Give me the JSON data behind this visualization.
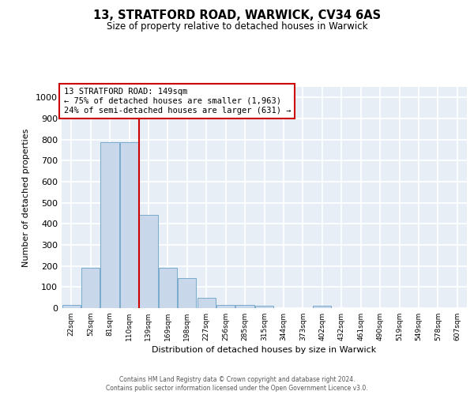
{
  "title_line1": "13, STRATFORD ROAD, WARWICK, CV34 6AS",
  "title_line2": "Size of property relative to detached houses in Warwick",
  "xlabel": "Distribution of detached houses by size in Warwick",
  "ylabel": "Number of detached properties",
  "annotation_title": "13 STRATFORD ROAD: 149sqm",
  "annotation_line2": "← 75% of detached houses are smaller (1,963)",
  "annotation_line3": "24% of semi-detached houses are larger (631) →",
  "bar_labels": [
    "22sqm",
    "52sqm",
    "81sqm",
    "110sqm",
    "139sqm",
    "169sqm",
    "198sqm",
    "227sqm",
    "256sqm",
    "285sqm",
    "315sqm",
    "344sqm",
    "373sqm",
    "402sqm",
    "432sqm",
    "461sqm",
    "490sqm",
    "519sqm",
    "549sqm",
    "578sqm",
    "607sqm"
  ],
  "bar_values": [
    15,
    193,
    787,
    787,
    443,
    193,
    143,
    50,
    15,
    15,
    10,
    0,
    0,
    10,
    0,
    0,
    0,
    0,
    0,
    0,
    0
  ],
  "bar_color": "#c8d8ea",
  "bar_edge_color": "#7aaBcc",
  "ylim": [
    0,
    1050
  ],
  "yticks": [
    0,
    100,
    200,
    300,
    400,
    500,
    600,
    700,
    800,
    900,
    1000
  ],
  "background_color": "#e8eef6",
  "grid_color": "#ffffff",
  "annotation_box_color": "#ffffff",
  "annotation_box_edge": "#cc0000",
  "red_line_color": "#cc0000",
  "fig_background": "#ffffff",
  "footer_line1": "Contains HM Land Registry data © Crown copyright and database right 2024.",
  "footer_line2": "Contains public sector information licensed under the Open Government Licence v3.0."
}
